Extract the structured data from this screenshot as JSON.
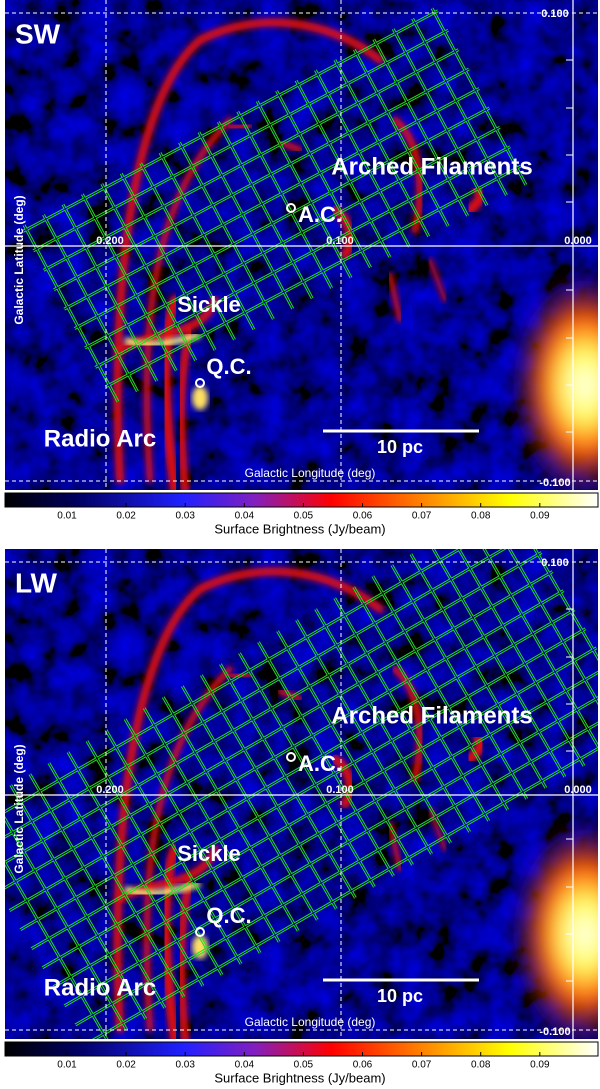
{
  "panels": [
    {
      "label": "SW",
      "annotations": {
        "arched_filaments": "Arched Filaments",
        "ac": "A.C.",
        "sickle": "Sickle",
        "qc": "Q.C.",
        "radio_arc": "Radio Arc"
      },
      "scale_bar": "10 pc",
      "x_axis_label": "Galactic Longitude (deg)",
      "y_axis_label": "Galactic Latitude (deg)",
      "x_tick_labels": [
        "0.200",
        "0.100",
        "0.000"
      ],
      "y_tick_labels": [
        "0.100",
        "-0.100"
      ],
      "colorbar": {
        "ticks": [
          "0.01",
          "0.02",
          "0.03",
          "0.04",
          "0.05",
          "0.06",
          "0.07",
          "0.08",
          "0.09"
        ],
        "label": "Surface Brightness (Jy/beam)"
      }
    },
    {
      "label": "LW",
      "annotations": {
        "arched_filaments": "Arched Filaments",
        "ac": "A.C.",
        "sickle": "Sickle",
        "qc": "Q.C.",
        "radio_arc": "Radio Arc"
      },
      "scale_bar": "10 pc",
      "x_axis_label": "Galactic Longitude (deg)",
      "y_axis_label": "Galactic Latitude (deg)",
      "x_tick_labels": [
        "0.200",
        "0.100",
        "0.000"
      ],
      "y_tick_labels": [
        "0.100",
        "-0.100"
      ],
      "colorbar": {
        "ticks": [
          "0.01",
          "0.02",
          "0.03",
          "0.04",
          "0.05",
          "0.06",
          "0.07",
          "0.08",
          "0.09"
        ],
        "label": "Surface Brightness (Jy/beam)"
      }
    }
  ]
}
